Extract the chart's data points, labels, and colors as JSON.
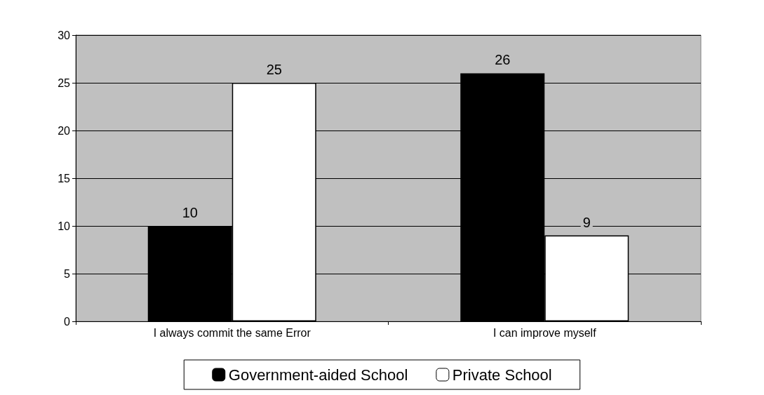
{
  "chart_data": {
    "type": "bar",
    "categories": [
      "I always commit the same Error",
      "I can improve myself"
    ],
    "series": [
      {
        "name": "Government-aided School",
        "color": "#000000",
        "values": [
          10,
          26
        ]
      },
      {
        "name": "Private School",
        "color": "#ffffff",
        "values": [
          25,
          9
        ]
      }
    ],
    "ylim": [
      0,
      30
    ],
    "yticks": [
      0,
      5,
      10,
      15,
      20,
      25,
      30
    ],
    "grid": "y",
    "legend": "bottom",
    "data_labels": true
  }
}
